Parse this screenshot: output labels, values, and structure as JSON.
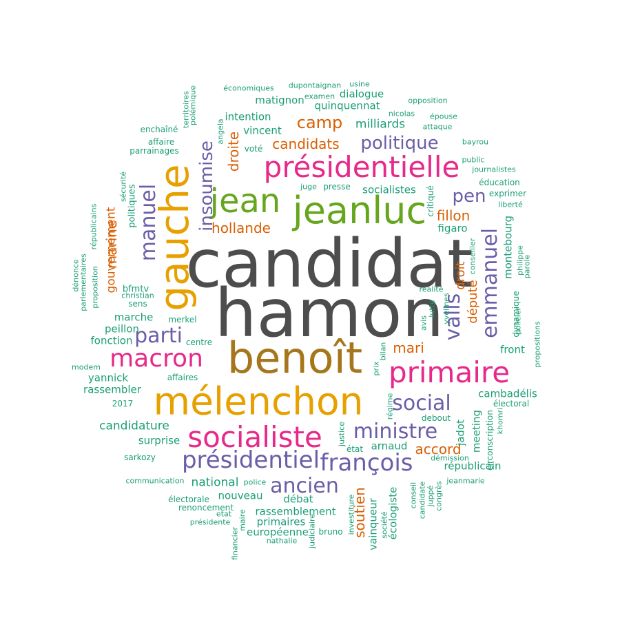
{
  "colors": {
    "gray": "#4d4d4d",
    "gold": "#e6a000",
    "brown": "#a6761d",
    "green": "#66a61e",
    "magenta": "#e7298a",
    "purple": "#6a5ea8",
    "orange": "#d95f02",
    "teal": "#1b9e77"
  },
  "words": [
    {
      "text": "candidat",
      "color": "gray"
    },
    {
      "text": "hamon",
      "color": "gray"
    },
    {
      "text": "benoît",
      "color": "brown"
    },
    {
      "text": "mélenchon",
      "color": "gold"
    },
    {
      "text": "gauche",
      "color": "gold"
    },
    {
      "text": "jeanluc",
      "color": "green"
    },
    {
      "text": "jean",
      "color": "green"
    },
    {
      "text": "présidentielle",
      "color": "magenta"
    },
    {
      "text": "primaire",
      "color": "magenta"
    },
    {
      "text": "socialiste",
      "color": "magenta"
    },
    {
      "text": "macron",
      "color": "magenta"
    },
    {
      "text": "présidentiel",
      "color": "purple"
    },
    {
      "text": "françois",
      "color": "purple"
    },
    {
      "text": "ministre",
      "color": "purple"
    },
    {
      "text": "social",
      "color": "purple"
    },
    {
      "text": "valls",
      "color": "purple"
    },
    {
      "text": "emmanuel",
      "color": "purple"
    },
    {
      "text": "ancien",
      "color": "purple"
    },
    {
      "text": "parti",
      "color": "purple"
    },
    {
      "text": "manuel",
      "color": "purple"
    },
    {
      "text": "insoumise",
      "color": "purple"
    },
    {
      "text": "politique",
      "color": "purple"
    },
    {
      "text": "pen",
      "color": "purple"
    },
    {
      "text": "camp",
      "color": "orange"
    },
    {
      "text": "candidats",
      "color": "orange"
    },
    {
      "text": "hollande",
      "color": "orange"
    },
    {
      "text": "fillon",
      "color": "orange"
    },
    {
      "text": "droite",
      "color": "orange"
    },
    {
      "text": "droit",
      "color": "orange"
    },
    {
      "text": "mari",
      "color": "orange"
    },
    {
      "text": "député",
      "color": "orange"
    },
    {
      "text": "accord",
      "color": "orange"
    },
    {
      "text": "soutien",
      "color": "orange"
    },
    {
      "text": "marine",
      "color": "orange"
    },
    {
      "text": "gouvernement",
      "color": "orange"
    },
    {
      "text": "milliards",
      "color": "teal"
    },
    {
      "text": "quinquennat",
      "color": "teal"
    },
    {
      "text": "intention",
      "color": "teal"
    },
    {
      "text": "vincent",
      "color": "teal"
    },
    {
      "text": "matignon",
      "color": "teal"
    },
    {
      "text": "dialogue",
      "color": "teal"
    },
    {
      "text": "socialistes",
      "color": "teal"
    },
    {
      "text": "figaro",
      "color": "teal"
    },
    {
      "text": "candidature",
      "color": "teal"
    },
    {
      "text": "marche",
      "color": "teal"
    },
    {
      "text": "peillon",
      "color": "teal"
    },
    {
      "text": "fonction",
      "color": "teal"
    },
    {
      "text": "national",
      "color": "teal"
    },
    {
      "text": "nouveau",
      "color": "teal"
    },
    {
      "text": "débat",
      "color": "teal"
    },
    {
      "text": "rassemblement",
      "color": "teal"
    },
    {
      "text": "meeting",
      "color": "teal"
    },
    {
      "text": "arnaud",
      "color": "teal"
    },
    {
      "text": "républicain",
      "color": "teal"
    },
    {
      "text": "front",
      "color": "teal"
    },
    {
      "text": "montebourg",
      "color": "teal"
    },
    {
      "text": "écologiste",
      "color": "teal"
    },
    {
      "text": "vainqueur",
      "color": "teal"
    },
    {
      "text": "yannick",
      "color": "teal"
    },
    {
      "text": "rassembler",
      "color": "teal"
    },
    {
      "text": "surprise",
      "color": "teal"
    },
    {
      "text": "primaires",
      "color": "teal"
    },
    {
      "text": "européenne",
      "color": "teal"
    },
    {
      "text": "bruno",
      "color": "teal"
    },
    {
      "text": "état",
      "color": "teal"
    },
    {
      "text": "jadot",
      "color": "teal"
    },
    {
      "text": "cambadélis",
      "color": "teal"
    },
    {
      "text": "électoral",
      "color": "teal"
    },
    {
      "text": "debout",
      "color": "teal"
    },
    {
      "text": "politiques",
      "color": "teal"
    },
    {
      "text": "bfmtv",
      "color": "teal"
    },
    {
      "text": "christian",
      "color": "teal"
    },
    {
      "text": "sens",
      "color": "teal"
    },
    {
      "text": "merkel",
      "color": "teal"
    },
    {
      "text": "centre",
      "color": "teal"
    },
    {
      "text": "affaires",
      "color": "teal"
    },
    {
      "text": "2017",
      "color": "teal"
    },
    {
      "text": "modem",
      "color": "teal"
    },
    {
      "text": "sarkozy",
      "color": "teal"
    },
    {
      "text": "communication",
      "color": "teal"
    },
    {
      "text": "électorale",
      "color": "teal"
    },
    {
      "text": "renoncement",
      "color": "teal"
    },
    {
      "text": "etat",
      "color": "teal"
    },
    {
      "text": "présidente",
      "color": "teal"
    },
    {
      "text": "police",
      "color": "teal"
    },
    {
      "text": "nathalie",
      "color": "teal"
    },
    {
      "text": "économiques",
      "color": "teal"
    },
    {
      "text": "dupontaignan",
      "color": "teal"
    },
    {
      "text": "examen",
      "color": "teal"
    },
    {
      "text": "usine",
      "color": "teal"
    },
    {
      "text": "opposition",
      "color": "teal"
    },
    {
      "text": "nicolas",
      "color": "teal"
    },
    {
      "text": "épouse",
      "color": "teal"
    },
    {
      "text": "attaque",
      "color": "teal"
    },
    {
      "text": "bayrou",
      "color": "teal"
    },
    {
      "text": "public",
      "color": "teal"
    },
    {
      "text": "journalistes",
      "color": "teal"
    },
    {
      "text": "éducation",
      "color": "teal"
    },
    {
      "text": "exprimer",
      "color": "teal"
    },
    {
      "text": "liberté",
      "color": "teal"
    },
    {
      "text": "enchaîné",
      "color": "teal"
    },
    {
      "text": "affaire",
      "color": "teal"
    },
    {
      "text": "parrainages",
      "color": "teal"
    },
    {
      "text": "voté",
      "color": "teal"
    },
    {
      "text": "juge",
      "color": "teal"
    },
    {
      "text": "presse",
      "color": "teal"
    },
    {
      "text": "critiqué",
      "color": "teal"
    },
    {
      "text": "territoires",
      "color": "teal"
    },
    {
      "text": "polémique",
      "color": "teal"
    },
    {
      "text": "angela",
      "color": "teal"
    },
    {
      "text": "sécurité",
      "color": "teal"
    },
    {
      "text": "républicains",
      "color": "teal"
    },
    {
      "text": "dénonce",
      "color": "teal"
    },
    {
      "text": "parlementaires",
      "color": "teal"
    },
    {
      "text": "proposition",
      "color": "teal"
    },
    {
      "text": "réalité",
      "color": "teal"
    },
    {
      "text": "avis",
      "color": "teal"
    },
    {
      "text": "lutte",
      "color": "teal"
    },
    {
      "text": "yvelines",
      "color": "teal"
    },
    {
      "text": "conseiller",
      "color": "teal"
    },
    {
      "text": "philippe",
      "color": "teal"
    },
    {
      "text": "parole",
      "color": "teal"
    },
    {
      "text": "dynamique",
      "color": "teal"
    },
    {
      "text": "policier",
      "color": "teal"
    },
    {
      "text": "propositions",
      "color": "teal"
    },
    {
      "text": "bilan",
      "color": "teal"
    },
    {
      "text": "prix",
      "color": "teal"
    },
    {
      "text": "régime",
      "color": "teal"
    },
    {
      "text": "justice",
      "color": "teal"
    },
    {
      "text": "démission",
      "color": "teal"
    },
    {
      "text": "circonscription",
      "color": "teal"
    },
    {
      "text": "khomri",
      "color": "teal"
    },
    {
      "text": "jeanmarie",
      "color": "teal"
    },
    {
      "text": "conseil",
      "color": "teal"
    },
    {
      "text": "candidate",
      "color": "teal"
    },
    {
      "text": "juppé",
      "color": "teal"
    },
    {
      "text": "congrès",
      "color": "teal"
    },
    {
      "text": "société",
      "color": "teal"
    },
    {
      "text": "investiture",
      "color": "teal"
    },
    {
      "text": "judiciaire",
      "color": "teal"
    },
    {
      "text": "maire",
      "color": "teal"
    },
    {
      "text": "financier",
      "color": "teal"
    }
  ]
}
